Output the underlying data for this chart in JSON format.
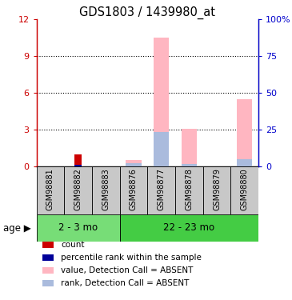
{
  "title": "GDS1803 / 1439980_at",
  "samples": [
    "GSM98881",
    "GSM98882",
    "GSM98883",
    "GSM98876",
    "GSM98877",
    "GSM98878",
    "GSM98879",
    "GSM98880"
  ],
  "groups": [
    {
      "label": "2 - 3 mo",
      "indices": [
        0,
        1,
        2
      ],
      "color": "#77DD77"
    },
    {
      "label": "22 - 23 mo",
      "indices": [
        3,
        4,
        5,
        6,
        7
      ],
      "color": "#44CC44"
    }
  ],
  "ylim_left": [
    0,
    12
  ],
  "ylim_right": [
    0,
    100
  ],
  "yticks_left": [
    0,
    3,
    6,
    9,
    12
  ],
  "yticks_right": [
    0,
    25,
    50,
    75,
    100
  ],
  "ytick_labels_left": [
    "0",
    "3",
    "6",
    "9",
    "12"
  ],
  "ytick_labels_right": [
    "0",
    "25",
    "50",
    "75",
    "100%"
  ],
  "count_color": "#CC0000",
  "rank_color": "#000099",
  "value_absent_color": "#FFB6C1",
  "rank_absent_color": "#AABBDD",
  "count_values": [
    0,
    1.0,
    0,
    0,
    0,
    0,
    0,
    0
  ],
  "rank_values": [
    0,
    0.13,
    0,
    0,
    0,
    0,
    0,
    0
  ],
  "value_absent": [
    0,
    0,
    0,
    0.55,
    10.5,
    3.1,
    0,
    5.5
  ],
  "rank_absent": [
    0,
    0,
    0,
    0.25,
    2.8,
    0.18,
    0,
    0.6
  ],
  "legend_items": [
    {
      "color": "#CC0000",
      "label": "count"
    },
    {
      "color": "#000099",
      "label": "percentile rank within the sample"
    },
    {
      "color": "#FFB6C1",
      "label": "value, Detection Call = ABSENT"
    },
    {
      "color": "#AABBDD",
      "label": "rank, Detection Call = ABSENT"
    }
  ],
  "age_label": "age",
  "left_axis_color": "#CC0000",
  "right_axis_color": "#0000CC",
  "sample_bg_color": "#C8C8C8"
}
